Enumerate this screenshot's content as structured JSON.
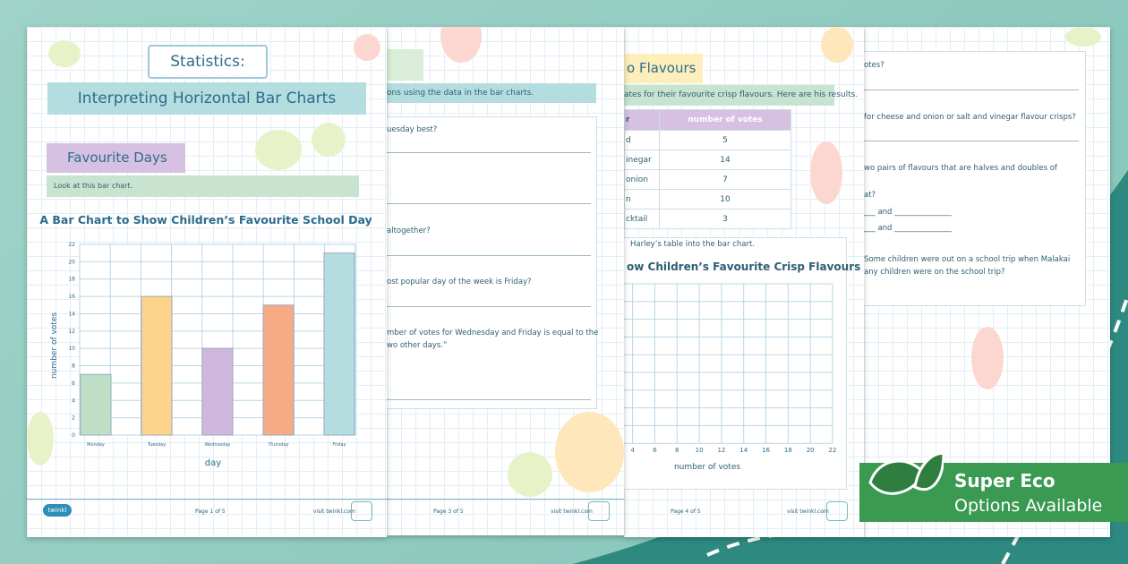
{
  "pages": [
    {
      "title": "Statistics:",
      "subtitle": "Interpreting Horizontal Bar Charts",
      "section": "Favourite Days",
      "instruction": "Look at this bar chart.",
      "chart": {
        "type": "bar",
        "title": "A Bar Chart to Show Children’s Favourite School Day",
        "x_label": "day",
        "y_label": "number of votes",
        "categories": [
          "Monday",
          "Tuesday",
          "Wednesday",
          "Thursday",
          "Friday"
        ],
        "values": [
          7,
          16,
          10,
          15,
          21
        ],
        "colors": [
          "#bfe0c7",
          "#fdd48a",
          "#cfb7dd",
          "#f6ab85",
          "#b4dde0"
        ],
        "ylim": [
          0,
          22
        ],
        "yticks": [
          0,
          2,
          4,
          6,
          8,
          10,
          12,
          14,
          16,
          18,
          20,
          22
        ],
        "grid": true
      },
      "footer": {
        "logo": "twinkl",
        "page": "Page 1 of 5",
        "site": "visit twinkl.com"
      }
    },
    {
      "instruction": "ons using the data in the bar charts.",
      "questions": [
        "uesday best?",
        "altogether?",
        "ost popular day of the week is Friday?",
        "mber of votes for Wednesday and Friday is equal to the",
        "wo other days.”"
      ],
      "footer": {
        "page": "Page 3 of 5",
        "site": "visit twinkl.com"
      }
    },
    {
      "section": "o Flavours",
      "instruction": "ates for their favourite crisp flavours. Here are his results.",
      "table": {
        "header": [
          "r",
          "number of votes"
        ],
        "rows": [
          [
            "d",
            5
          ],
          [
            "inegar",
            14
          ],
          [
            "onion",
            7
          ],
          [
            "n",
            10
          ],
          [
            "cktail",
            3
          ]
        ]
      },
      "note": "Harley’s table into the bar chart.",
      "chart": {
        "type": "bar",
        "title": "ow Children’s Favourite Crisp Flavours",
        "x_label": "number of votes",
        "xlim": [
          0,
          22
        ],
        "xticks": [
          4,
          6,
          8,
          10,
          12,
          14,
          16,
          18,
          20,
          22
        ],
        "grid": true
      },
      "footer": {
        "page": "Page 4 of 5",
        "site": "visit twinkl.com"
      }
    },
    {
      "questions": [
        "otes?",
        "for cheese and onion or salt and vinegar flavour crisps?",
        "wo pairs of flavours that are halves and doubles of",
        "at?",
        "___ and _______________",
        "___ and _______________",
        "Some children were out on a school trip when Malakai",
        "any children were on the school trip?"
      ]
    }
  ],
  "badge": {
    "title": "Super Eco",
    "subtitle": "Options Available"
  }
}
